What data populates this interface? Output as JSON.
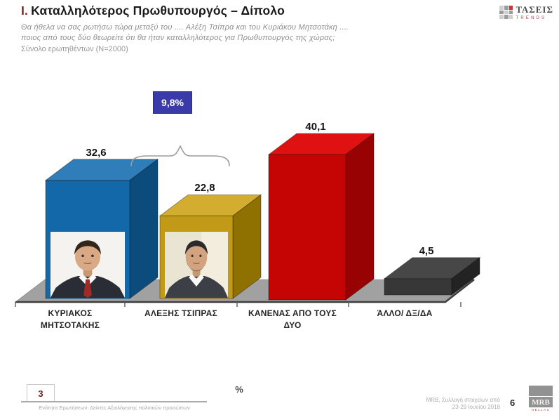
{
  "slide": {
    "title_prefix": "Ι.",
    "title": "Καταλληλότερος Πρωθυπουργός – Δίπολο",
    "question_line1": "Θα ήθελα να σας ρωτήσω τώρα μεταξύ του .... Αλέξη Τσίπρα και του Κυριάκου Μητσοτάκη ....",
    "question_line2": "ποιος από τους δύο θεωρείτε ότι θα ήταν καταλληλότερος για Πρωθυπουργός της χώρας;",
    "sample_note": "Σύνολο ερωτηθέντων (Ν=2000)"
  },
  "brand_top": {
    "name": "ΤΑΣΕΙΣ",
    "subname": "TRENDS"
  },
  "chart_data": {
    "type": "bar",
    "projection": "3d",
    "unit": "%",
    "categories": [
      "ΚΥΡΙΑΚΟΣ ΜΗΤΣΟΤΑΚΗΣ",
      "ΑΛΕΞΗΣ ΤΣΙΠΡΑΣ",
      "ΚΑΝΕΝΑΣ ΑΠΟ ΤΟΥΣ ΔΥΟ",
      "ΆΛΛΟ/ ΔΞ/ΔΑ"
    ],
    "values": [
      32.6,
      22.8,
      40.1,
      4.5
    ],
    "value_labels": [
      "32,6",
      "22,8",
      "40,1",
      "4,5"
    ],
    "bar_face_colors": [
      "#1268a9",
      "#c39a18",
      "#c50404",
      "#373737"
    ],
    "bar_top_colors": [
      "#2f7db9",
      "#d2ad30",
      "#e01111",
      "#474747"
    ],
    "bar_side_colors": [
      "#0b4c7c",
      "#8f7102",
      "#990202",
      "#232323"
    ],
    "photo_bars": [
      0,
      1
    ],
    "difference_annotation": {
      "label": "9,8%",
      "between": [
        "ΚΥΡΙΑΚΟΣ ΜΗΤΣΟΤΑΚΗΣ",
        "ΑΛΕΞΗΣ ΤΣΙΠΡΑΣ"
      ],
      "badge_color": "#3a3aa8"
    },
    "legend": null,
    "grid": false
  },
  "footer": {
    "slide_ref": "3",
    "section_note": "Ενότητα Ερωτήσεων: Δείκτες Αξιολόγησης πολιτικών προσώπων",
    "source_line1": "MRB, Συλλογή στοιχείων από",
    "source_line2": "23-29 Ιουνίου 2018",
    "page_number": "6",
    "brand": {
      "name": "MRB",
      "subname": "HELLAS"
    }
  }
}
